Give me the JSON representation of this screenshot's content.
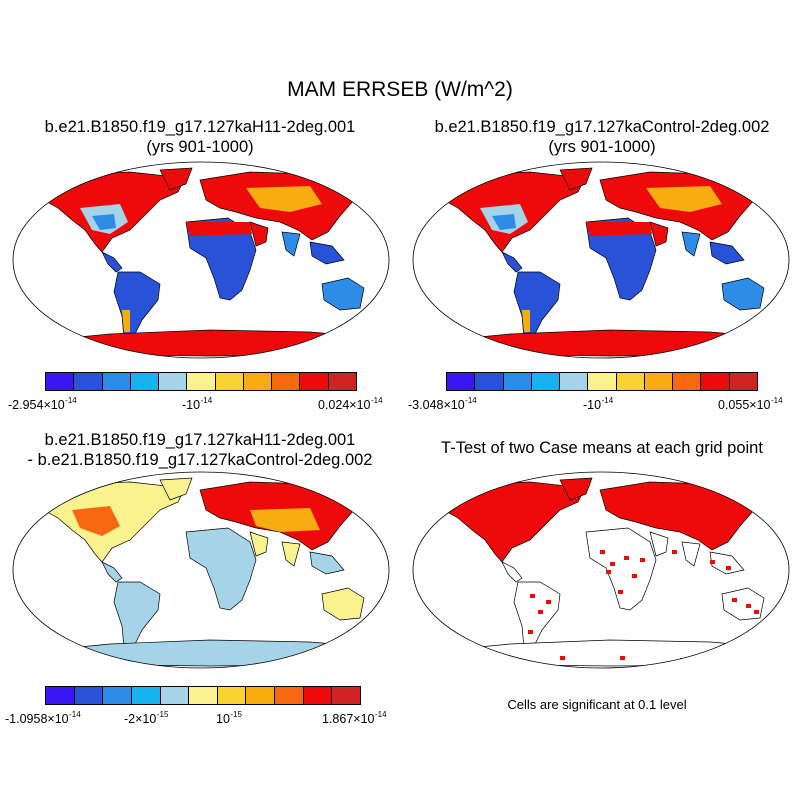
{
  "title": "MAM ERRSEB (W/m^2)",
  "colors": {
    "palette": [
      "#3a16f5",
      "#2853d9",
      "#2d8ce8",
      "#16b3ef",
      "#a5d3e8",
      "#faf28e",
      "#f9d32f",
      "#f9ab12",
      "#f86810",
      "#ee0a0a",
      "#d02424"
    ],
    "land_gray": "#ffffff",
    "outline": "#000000"
  },
  "panels": [
    {
      "id": "case1",
      "title_line1": "b.e21.B1850.f19_g17.127kaH11-2deg.001",
      "title_line2": "(yrs 901-1000)",
      "colorbar": {
        "labels": [
          {
            "mant": "-2.954×10",
            "exp": "-14"
          },
          {
            "mant": "-10",
            "exp": "-14"
          },
          {
            "mant": "0.024×10",
            "exp": "-14"
          }
        ]
      }
    },
    {
      "id": "case2",
      "title_line1": "b.e21.B1850.f19_g17.127kaControl-2deg.002",
      "title_line2": "(yrs 901-1000)",
      "colorbar": {
        "labels": [
          {
            "mant": "-3.048×10",
            "exp": "-14"
          },
          {
            "mant": "-10",
            "exp": "-14"
          },
          {
            "mant": "0.055×10",
            "exp": "-14"
          }
        ]
      }
    },
    {
      "id": "diff",
      "title_line1": "b.e21.B1850.f19_g17.127kaH11-2deg.001",
      "title_line2": "- b.e21.B1850.f19_g17.127kaControl-2deg.002",
      "colorbar": {
        "labels": [
          {
            "mant": "-1.0958×10",
            "exp": "-14"
          },
          {
            "mant": "-2×10",
            "exp": "-15"
          },
          {
            "mant": "10",
            "exp": "-15"
          },
          {
            "mant": "1.867×10",
            "exp": "-14"
          }
        ]
      }
    },
    {
      "id": "ttest",
      "title_line1": "T-Test of two Case means at each grid point",
      "note": "Cells are significant at 0.1 level"
    }
  ],
  "chart_data": [
    {
      "type": "heatmap",
      "projection": "robinson-world",
      "title": "b.e21.B1850.f19_g17.127kaH11-2deg.001 (yrs 901-1000)",
      "variable": "MAM ERRSEB (W/m^2)",
      "colorbar_min": -2.954e-14,
      "colorbar_max": 2.4e-16,
      "levels": 11,
      "regions": [
        {
          "name": "north-america-high-lat",
          "level": 9
        },
        {
          "name": "north-america-east",
          "level": 4
        },
        {
          "name": "south-america",
          "level": 1
        },
        {
          "name": "sahara-arabia",
          "level": 9
        },
        {
          "name": "central-africa",
          "level": 1
        },
        {
          "name": "eurasia",
          "level": 9
        },
        {
          "name": "south-asia",
          "level": 2
        },
        {
          "name": "australia",
          "level": 2
        },
        {
          "name": "antarctica",
          "level": 9
        }
      ]
    },
    {
      "type": "heatmap",
      "projection": "robinson-world",
      "title": "b.e21.B1850.f19_g17.127kaControl-2deg.002 (yrs 901-1000)",
      "variable": "MAM ERRSEB (W/m^2)",
      "colorbar_min": -3.048e-14,
      "colorbar_max": 5.5e-16,
      "levels": 11,
      "regions": [
        {
          "name": "north-america-high-lat",
          "level": 9
        },
        {
          "name": "north-america-east",
          "level": 4
        },
        {
          "name": "south-america",
          "level": 1
        },
        {
          "name": "sahara-arabia",
          "level": 9
        },
        {
          "name": "central-africa",
          "level": 1
        },
        {
          "name": "eurasia",
          "level": 9
        },
        {
          "name": "south-asia",
          "level": 2
        },
        {
          "name": "australia",
          "level": 2
        },
        {
          "name": "antarctica",
          "level": 9
        }
      ]
    },
    {
      "type": "heatmap",
      "projection": "robinson-world",
      "title": "b.e21.B1850.f19_g17.127kaH11-2deg.001 - b.e21.B1850.f19_g17.127kaControl-2deg.002",
      "variable": "MAM ERRSEB (W/m^2)",
      "colorbar_min": -1.0958e-14,
      "colorbar_max": 1.867e-14,
      "levels": 11,
      "regions": [
        {
          "name": "north-america-north",
          "level": 5
        },
        {
          "name": "north-america-east",
          "level": 8
        },
        {
          "name": "south-america",
          "level": 4
        },
        {
          "name": "africa",
          "level": 4
        },
        {
          "name": "eurasia-north",
          "level": 9
        },
        {
          "name": "central-asia",
          "level": 7
        },
        {
          "name": "south-asia",
          "level": 5
        },
        {
          "name": "australia",
          "level": 5
        },
        {
          "name": "antarctica",
          "level": 4
        }
      ]
    },
    {
      "type": "heatmap",
      "projection": "robinson-world",
      "title": "T-Test of two Case means at each grid point",
      "significance_level": 0.1,
      "significant_color": "#ee0a0a",
      "regions": [
        {
          "name": "north-america",
          "significant": true
        },
        {
          "name": "eurasia",
          "significant": true
        },
        {
          "name": "africa",
          "significant": "partial"
        },
        {
          "name": "south-america",
          "significant": "partial"
        },
        {
          "name": "australia",
          "significant": "partial"
        },
        {
          "name": "antarctica",
          "significant": "partial"
        }
      ]
    }
  ]
}
